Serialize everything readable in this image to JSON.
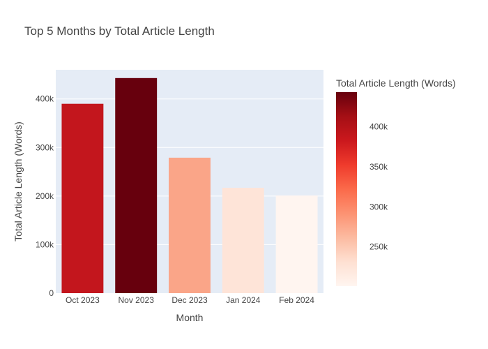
{
  "chart_data": {
    "type": "bar",
    "title": "Top 5 Months by Total Article Length",
    "xlabel": "Month",
    "ylabel": "Total Article Length (Words)",
    "categories": [
      "Oct 2023",
      "Nov 2023",
      "Dec 2023",
      "Jan 2024",
      "Feb 2024"
    ],
    "values": [
      390000,
      443000,
      279000,
      217000,
      201000
    ],
    "ylim": [
      0,
      460000
    ],
    "yticks": [
      0,
      100000,
      200000,
      300000,
      400000
    ],
    "ytick_labels": [
      "0",
      "100k",
      "200k",
      "300k",
      "400k"
    ],
    "grid": true,
    "plot_background": "#E5ECF6",
    "colorbar": {
      "title": "Total Article Length (Words)",
      "colorscale": "Reds",
      "range": [
        201000,
        443000
      ],
      "ticks": [
        250000,
        300000,
        350000,
        400000
      ],
      "tick_labels": [
        "250k",
        "300k",
        "350k",
        "400k"
      ],
      "placement": "right"
    },
    "bar_colors": [
      "#C3161D",
      "#67000D",
      "#FAA588",
      "#FEE4D8",
      "#FFF5F0"
    ]
  }
}
